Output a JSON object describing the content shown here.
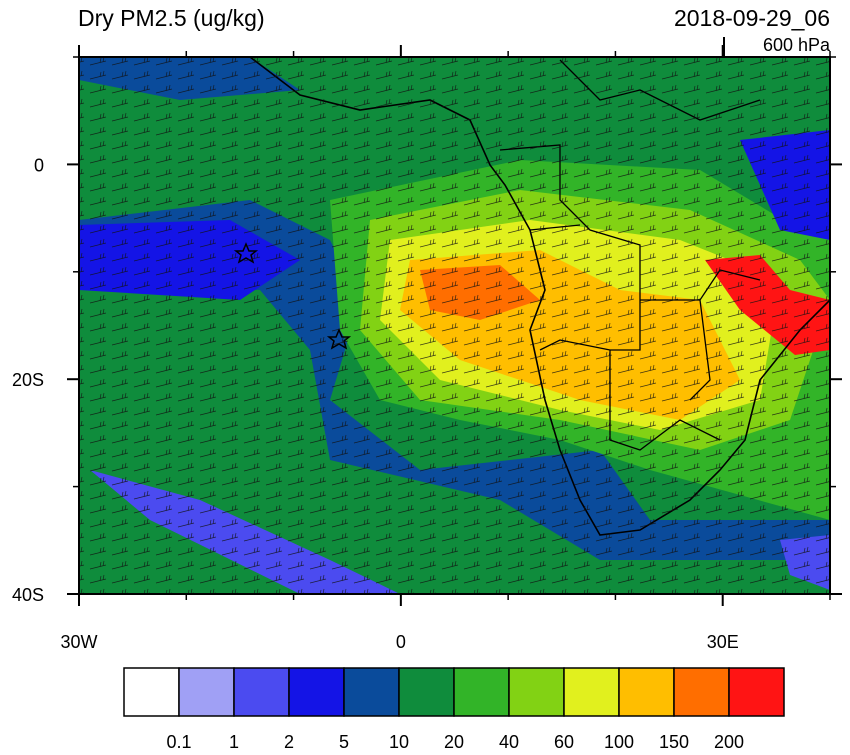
{
  "header": {
    "title": "Dry PM2.5 (ug/kg)",
    "time": "2018-09-29_06",
    "level": "600 hPa"
  },
  "map": {
    "lon_range": [
      -30,
      40
    ],
    "lat_range": [
      10,
      -40
    ],
    "lon_ticks": [
      {
        "value": -30,
        "label": "30W"
      },
      {
        "value": 0,
        "label": "0"
      },
      {
        "value": 30,
        "label": "30E"
      }
    ],
    "lat_ticks": [
      {
        "value": 0,
        "label": "0"
      },
      {
        "value": -20,
        "label": "20S"
      },
      {
        "value": -40,
        "label": "40S"
      }
    ],
    "lon_minor_ticks": [
      -20,
      -10,
      10,
      20,
      40
    ],
    "lat_minor_ticks": [
      10,
      -10,
      -30
    ]
  },
  "colorbar": {
    "levels": [
      0.1,
      1,
      2,
      5,
      10,
      20,
      40,
      60,
      100,
      150,
      200
    ],
    "colors": [
      "#ffffff",
      "#a0a0f5",
      "#4b4bf0",
      "#1414e6",
      "#0a4b9b",
      "#0f8c3c",
      "#32b428",
      "#82d214",
      "#e1f01e",
      "#ffbe00",
      "#ff6e00",
      "#ff1414"
    ]
  }
}
